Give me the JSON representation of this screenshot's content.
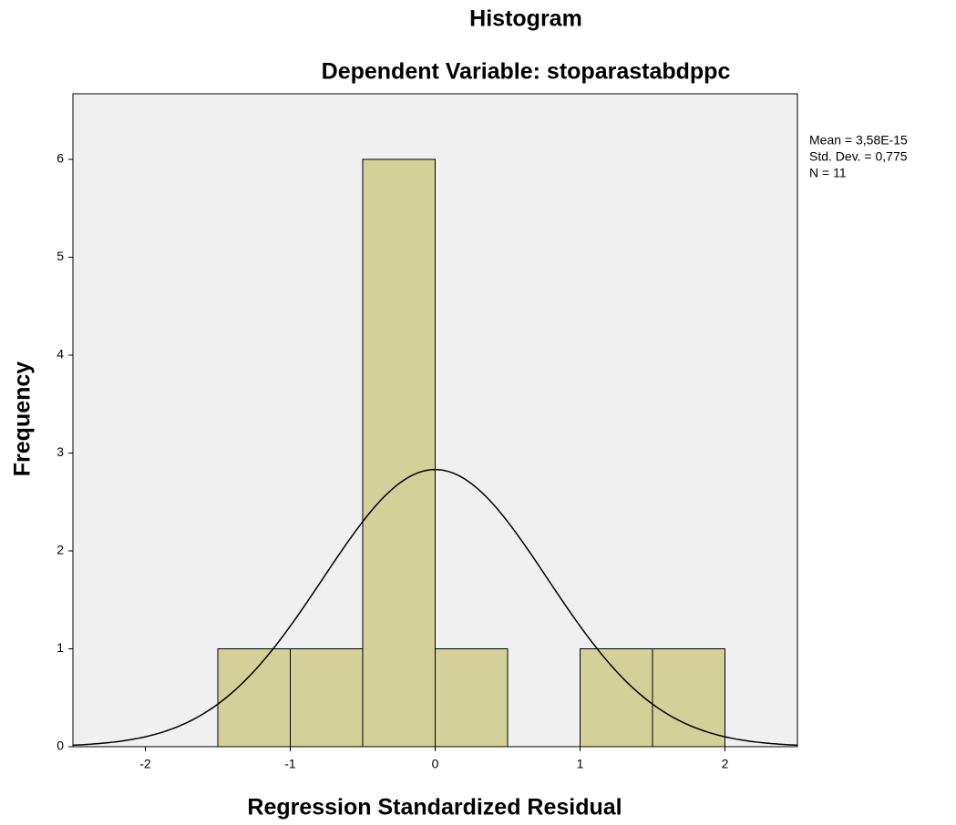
{
  "chart_data": {
    "type": "histogram",
    "title": "Histogram",
    "subtitle": "Dependent Variable: stoparastabdppc",
    "xlabel": "Regression Standardized Residual",
    "ylabel": "Frequency",
    "bins": [
      -1.5,
      -1,
      -0.5,
      0,
      0.5,
      1,
      1.5,
      2
    ],
    "values": [
      1,
      1,
      6,
      1,
      0,
      1,
      1
    ],
    "color": "#d4d09a",
    "xlim": [
      -2.5,
      2.5
    ],
    "xticks": [
      -2,
      -1,
      0,
      1,
      2
    ],
    "ylim": [
      0,
      6.67
    ],
    "yticks": [
      0,
      1,
      2,
      3,
      4,
      5,
      6
    ],
    "stats": [
      {
        "value": 3.58e-15,
        "label": "Mean = 3,58E-15"
      },
      {
        "value": 0.775,
        "label": "Std. Dev. = 0,775"
      },
      {
        "value": 11,
        "label": "N = 11"
      }
    ]
  }
}
